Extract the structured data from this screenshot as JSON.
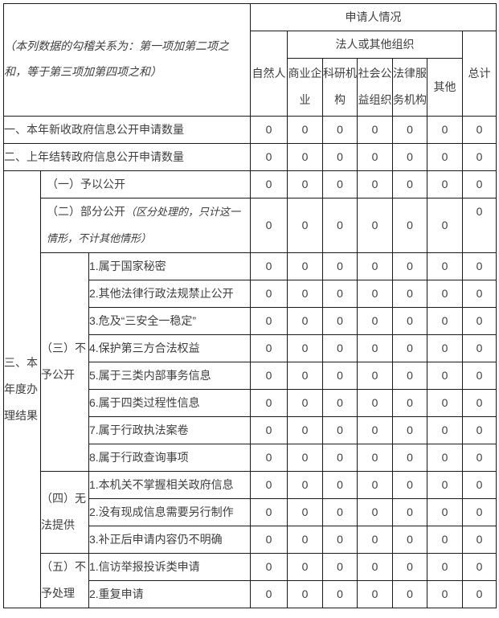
{
  "colors": {
    "border": "#1a1a1a",
    "label_text": "#3f3f3f",
    "value_text": "#3d4757",
    "background": "#ffffff"
  },
  "table": {
    "corner_note": "（本列数据的勾稽关系为：第一项加第二项之和，等于第三项加第四项之和）",
    "header": {
      "applicant_title": "申请人情况",
      "natural_person": "自然人",
      "legal_group": "法人或其他组织",
      "total": "总计",
      "legal_subcols": [
        "商业企业",
        "科研机构",
        "社会公益组织",
        "法律服务机构",
        "其他"
      ]
    },
    "rows": {
      "new_requests": {
        "label": "一、本年新收政府信息公开申请数量",
        "values": [
          "0",
          "0",
          "0",
          "0",
          "0",
          "0",
          "0"
        ]
      },
      "carried_over": {
        "label": "二、上年结转政府信息公开申请数量",
        "values": [
          "0",
          "0",
          "0",
          "0",
          "0",
          "0",
          "0"
        ]
      },
      "section_results": {
        "label": "三、本年度办理结果"
      },
      "granted": {
        "label": "（一）予以公开",
        "values": [
          "0",
          "0",
          "0",
          "0",
          "0",
          "0",
          "0"
        ]
      },
      "partial": {
        "label": "（二）部分公开",
        "note": "（区分处理的，只计这一情形，不计其他情形）",
        "values": [
          "0",
          "0",
          "0",
          "0",
          "0",
          "0",
          "0"
        ]
      },
      "refused": {
        "label": "（三）不予公开",
        "items": [
          {
            "label": "1.属于国家秘密",
            "values": [
              "0",
              "0",
              "0",
              "0",
              "0",
              "0",
              "0"
            ]
          },
          {
            "label": "2.其他法律行政法规禁止公开",
            "values": [
              "0",
              "0",
              "0",
              "0",
              "0",
              "0",
              "0"
            ]
          },
          {
            "label": "3.危及“三安全一稳定”",
            "values": [
              "0",
              "0",
              "0",
              "0",
              "0",
              "0",
              "0"
            ]
          },
          {
            "label": "4.保护第三方合法权益",
            "values": [
              "0",
              "0",
              "0",
              "0",
              "0",
              "0",
              "0"
            ]
          },
          {
            "label": "5.属于三类内部事务信息",
            "values": [
              "0",
              "0",
              "0",
              "0",
              "0",
              "0",
              "0"
            ]
          },
          {
            "label": "6.属于四类过程性信息",
            "values": [
              "0",
              "0",
              "0",
              "0",
              "0",
              "0",
              "0"
            ]
          },
          {
            "label": "7.属于行政执法案卷",
            "values": [
              "0",
              "0",
              "0",
              "0",
              "0",
              "0",
              "0"
            ]
          },
          {
            "label": "8.属于行政查询事项",
            "values": [
              "0",
              "0",
              "0",
              "0",
              "0",
              "0",
              "0"
            ]
          }
        ]
      },
      "unable": {
        "label": "（四）无法提供",
        "items": [
          {
            "label": "1.本机关不掌握相关政府信息",
            "values": [
              "0",
              "0",
              "0",
              "0",
              "0",
              "0",
              "0"
            ]
          },
          {
            "label": "2.没有现成信息需要另行制作",
            "values": [
              "0",
              "0",
              "0",
              "0",
              "0",
              "0",
              "0"
            ]
          },
          {
            "label": "3.补正后申请内容仍不明确",
            "values": [
              "0",
              "0",
              "0",
              "0",
              "0",
              "0",
              "0"
            ]
          }
        ]
      },
      "not_processed": {
        "label": "（五）不予处理",
        "items": [
          {
            "label": "1.信访举报投诉类申请",
            "values": [
              "0",
              "0",
              "0",
              "0",
              "0",
              "0",
              "0"
            ]
          },
          {
            "label": "2.重复申请",
            "values": [
              "0",
              "0",
              "0",
              "0",
              "0",
              "0",
              "0"
            ]
          }
        ]
      }
    }
  }
}
